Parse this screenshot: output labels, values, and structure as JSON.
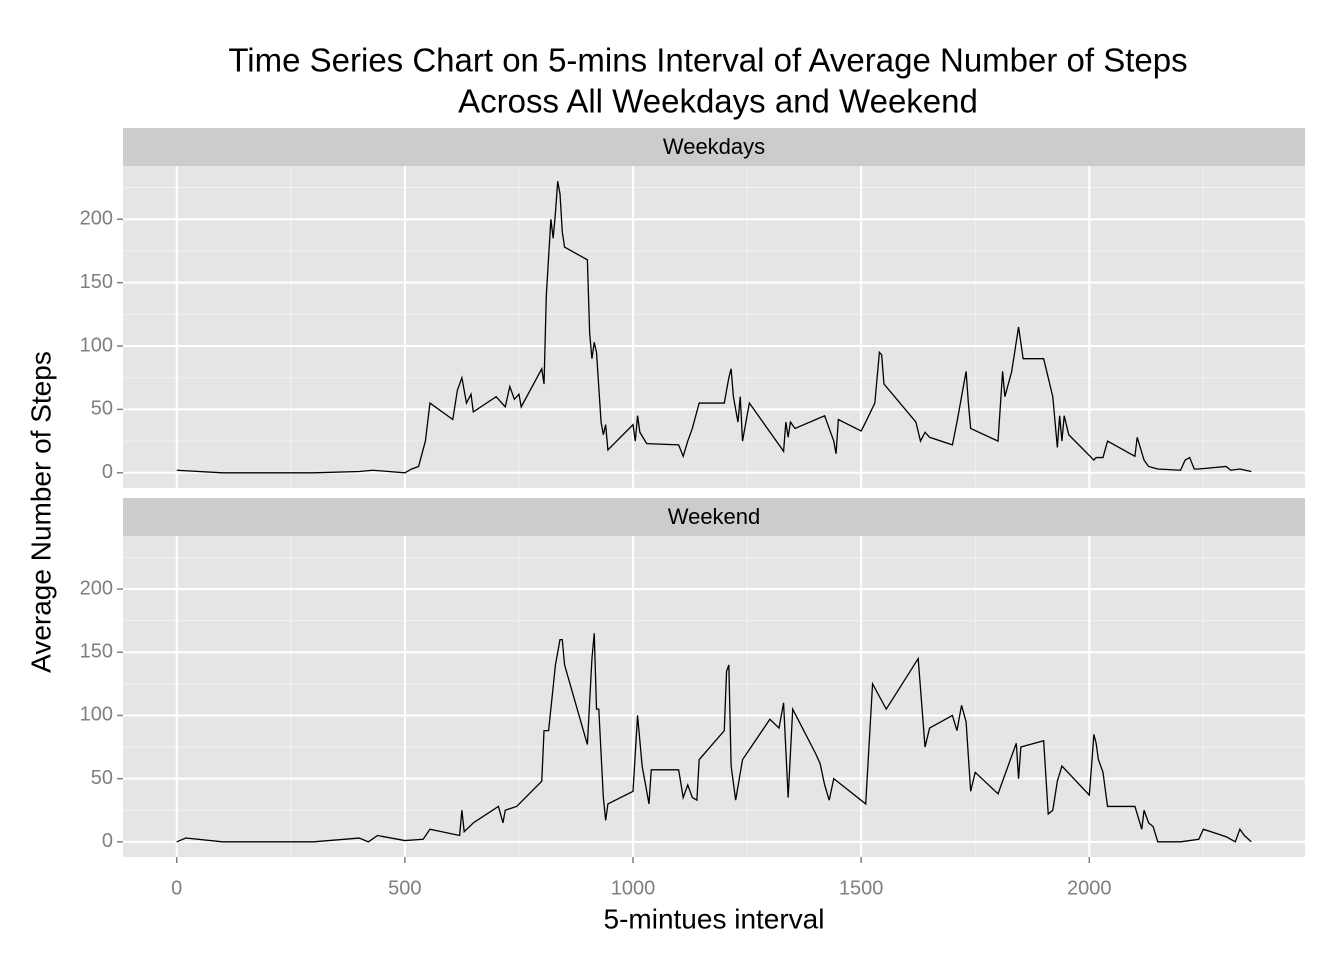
{
  "chart_data": {
    "type": "line",
    "title": [
      "Time Series Chart on 5-mins Interval of Average Number of Steps",
      "Across All Weekdays and Weekend"
    ],
    "x_label": "5-mintues interval",
    "y_label": "Average Number of Steps",
    "xlim": [
      -117.75,
      2472.75
    ],
    "xticks": [
      0,
      500,
      1000,
      1500,
      2000
    ],
    "xminor": [
      250,
      750,
      1250,
      1750,
      2250
    ],
    "ylim": [
      -12,
      242
    ],
    "yticks": [
      0,
      50,
      100,
      150,
      200
    ],
    "yminor": [
      25,
      75,
      125,
      175,
      225
    ],
    "grid": true,
    "color": "#000000",
    "panels": [
      {
        "name": "Weekdays",
        "x": [
          0,
          100,
          200,
          300,
          400,
          430,
          500,
          515,
          530,
          545,
          555,
          605,
          615,
          625,
          635,
          645,
          650,
          700,
          720,
          730,
          740,
          750,
          755,
          800,
          805,
          810,
          820,
          825,
          830,
          835,
          840,
          845,
          850,
          900,
          905,
          910,
          915,
          920,
          930,
          935,
          940,
          945,
          1000,
          1005,
          1010,
          1015,
          1030,
          1100,
          1110,
          1120,
          1130,
          1145,
          1200,
          1210,
          1215,
          1220,
          1230,
          1235,
          1240,
          1255,
          1330,
          1335,
          1340,
          1345,
          1355,
          1420,
          1430,
          1440,
          1445,
          1450,
          1500,
          1510,
          1530,
          1540,
          1545,
          1550,
          1620,
          1630,
          1640,
          1650,
          1700,
          1710,
          1720,
          1730,
          1735,
          1740,
          1800,
          1810,
          1815,
          1830,
          1845,
          1855,
          1900,
          1920,
          1930,
          1935,
          1940,
          1945,
          1955,
          2010,
          2015,
          2030,
          2040,
          2100,
          2105,
          2120,
          2130,
          2150,
          2200,
          2210,
          2220,
          2230,
          2240,
          2300,
          2310,
          2330,
          2355
        ],
        "values": [
          2,
          0,
          0,
          0,
          1,
          2,
          0,
          3,
          5,
          25,
          55,
          42,
          65,
          75,
          55,
          62,
          48,
          60,
          52,
          68,
          58,
          62,
          52,
          82,
          70,
          140,
          200,
          185,
          205,
          230,
          220,
          190,
          178,
          168,
          110,
          90,
          103,
          95,
          40,
          30,
          38,
          18,
          38,
          25,
          45,
          32,
          23,
          22,
          13,
          25,
          35,
          55,
          55,
          75,
          82,
          60,
          40,
          60,
          25,
          55,
          17,
          40,
          28,
          40,
          35,
          45,
          35,
          25,
          15,
          42,
          33,
          40,
          55,
          95,
          93,
          70,
          40,
          25,
          32,
          28,
          22,
          40,
          60,
          80,
          55,
          35,
          25,
          80,
          60,
          80,
          115,
          90,
          90,
          60,
          20,
          45,
          25,
          45,
          30,
          10,
          12,
          12,
          25,
          13,
          28,
          10,
          5,
          3,
          2,
          10,
          12,
          3,
          3,
          5,
          2,
          3,
          1
        ]
      },
      {
        "name": "Weekend",
        "x": [
          0,
          20,
          100,
          200,
          300,
          400,
          420,
          440,
          500,
          540,
          555,
          620,
          625,
          630,
          650,
          705,
          715,
          720,
          745,
          800,
          805,
          815,
          830,
          840,
          845,
          850,
          900,
          910,
          915,
          920,
          925,
          935,
          940,
          945,
          1000,
          1010,
          1020,
          1035,
          1040,
          1100,
          1110,
          1120,
          1130,
          1140,
          1145,
          1200,
          1205,
          1210,
          1215,
          1225,
          1240,
          1300,
          1320,
          1330,
          1340,
          1350,
          1400,
          1410,
          1420,
          1430,
          1440,
          1510,
          1525,
          1555,
          1625,
          1640,
          1650,
          1700,
          1710,
          1720,
          1730,
          1740,
          1750,
          1800,
          1840,
          1845,
          1850,
          1900,
          1910,
          1920,
          1930,
          1940,
          2000,
          2005,
          2010,
          2015,
          2020,
          2030,
          2040,
          2100,
          2115,
          2120,
          2130,
          2140,
          2150,
          2200,
          2220,
          2240,
          2250,
          2300,
          2320,
          2330,
          2340,
          2355
        ],
        "values": [
          0,
          3,
          0,
          0,
          0,
          3,
          0,
          5,
          1,
          2,
          10,
          5,
          25,
          8,
          15,
          28,
          15,
          25,
          28,
          48,
          88,
          88,
          140,
          160,
          160,
          140,
          77,
          145,
          165,
          105,
          105,
          35,
          17,
          30,
          40,
          100,
          60,
          30,
          57,
          57,
          35,
          45,
          35,
          33,
          65,
          88,
          135,
          140,
          60,
          33,
          65,
          97,
          90,
          110,
          35,
          105,
          70,
          62,
          45,
          33,
          50,
          30,
          125,
          105,
          145,
          75,
          90,
          100,
          88,
          108,
          95,
          40,
          55,
          38,
          78,
          50,
          75,
          80,
          22,
          25,
          48,
          60,
          37,
          60,
          85,
          78,
          65,
          55,
          28,
          28,
          10,
          25,
          15,
          12,
          0,
          0,
          1,
          2,
          10,
          4,
          0,
          10,
          5,
          0
        ]
      }
    ]
  }
}
